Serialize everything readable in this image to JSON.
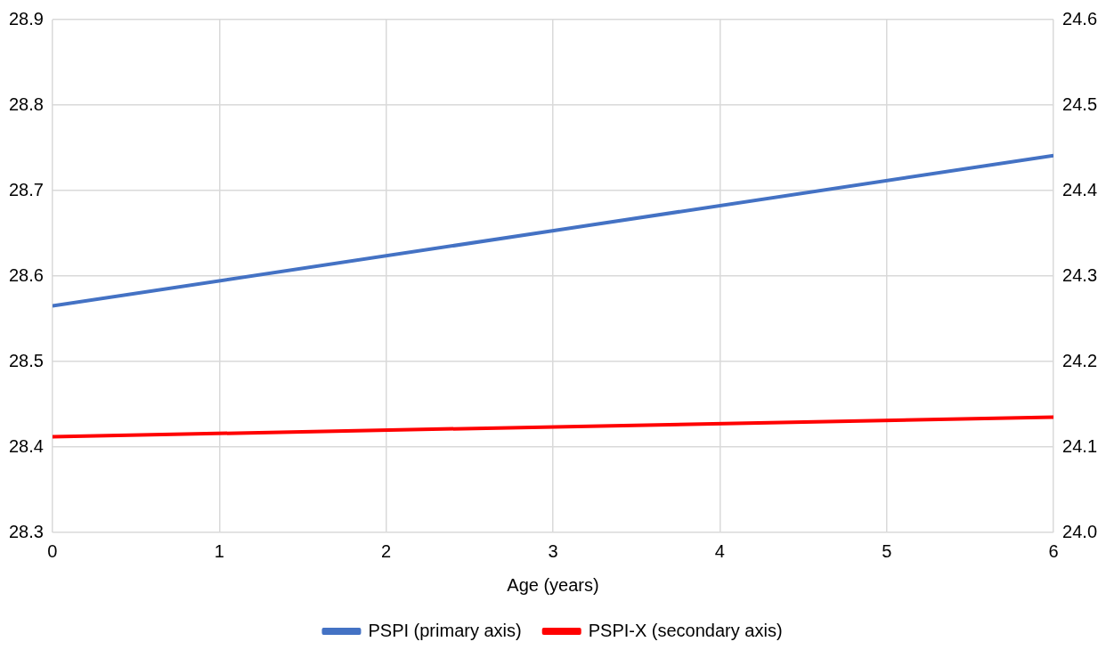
{
  "chart_data": {
    "type": "line",
    "xlabel": "Age (years)",
    "x": [
      0,
      6
    ],
    "series": [
      {
        "name": "PSPI (primary axis)",
        "color": "#4472c4",
        "values": [
          28.565,
          28.741
        ]
      },
      {
        "name": "PSPI-X (secondary axis)",
        "color": "#ff0000",
        "values": [
          24.112,
          24.135
        ],
        "axis": "y2"
      }
    ],
    "xlim": [
      0,
      6
    ],
    "xticks": [
      0,
      1,
      2,
      3,
      4,
      5,
      6
    ],
    "ylim": [
      28.3,
      28.9
    ],
    "yticks": [
      28.3,
      28.4,
      28.5,
      28.6,
      28.7,
      28.8,
      28.9
    ],
    "y2lim": [
      24.0,
      24.6
    ],
    "y2ticks": [
      {
        "value": 24,
        "label": "24.0"
      },
      24.1,
      24.2,
      24.3,
      24.4,
      24.5,
      24.6
    ],
    "grid": true,
    "legend": "bottom",
    "marker": "none",
    "line_style": "solid"
  }
}
